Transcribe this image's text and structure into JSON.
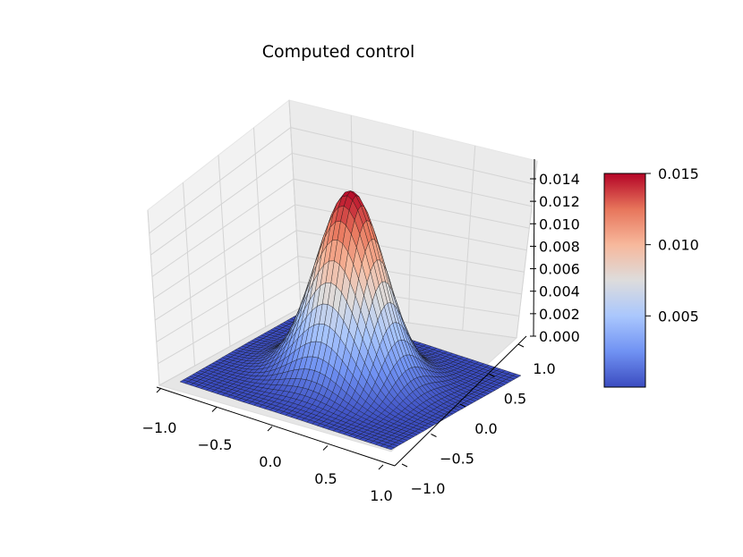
{
  "chart_data": {
    "type": "surface3d",
    "title": "Computed control",
    "x_range": [
      -1.0,
      1.0
    ],
    "y_range": [
      -1.0,
      1.0
    ],
    "x_ticks": [
      -1.0,
      -0.5,
      0.0,
      0.5,
      1.0
    ],
    "x_tick_labels": [
      "−1.0",
      "−0.5",
      "0.0",
      "0.5",
      "1.0"
    ],
    "y_ticks": [
      -1.0,
      -0.5,
      0.0,
      0.5,
      1.0
    ],
    "y_tick_labels": [
      "−1.0",
      "−0.5",
      "0.0",
      "0.5",
      "1.0"
    ],
    "z_range": [
      0.0,
      0.015
    ],
    "z_ticks": [
      0.0,
      0.002,
      0.004,
      0.006,
      0.008,
      0.01,
      0.012,
      0.014
    ],
    "z_tick_labels": [
      "0.000",
      "0.002",
      "0.004",
      "0.006",
      "0.008",
      "0.010",
      "0.012",
      "0.014"
    ],
    "surface": {
      "shape": "single peak",
      "peak_center": [
        0.0,
        0.0
      ],
      "peak_value": 0.015,
      "base_value": 0.0
    },
    "grid": true,
    "colormap": "coolwarm",
    "colormap_colors": [
      "#3b4cc0",
      "#7092f3",
      "#aac7fd",
      "#dddcdc",
      "#f7b89c",
      "#e7755b",
      "#b40426"
    ],
    "colorbar": {
      "range": [
        0.0,
        0.015
      ],
      "ticks": [
        0.005,
        0.01,
        0.015
      ],
      "tick_labels": [
        "0.005",
        "0.010",
        "0.015"
      ],
      "placement": "right"
    }
  }
}
